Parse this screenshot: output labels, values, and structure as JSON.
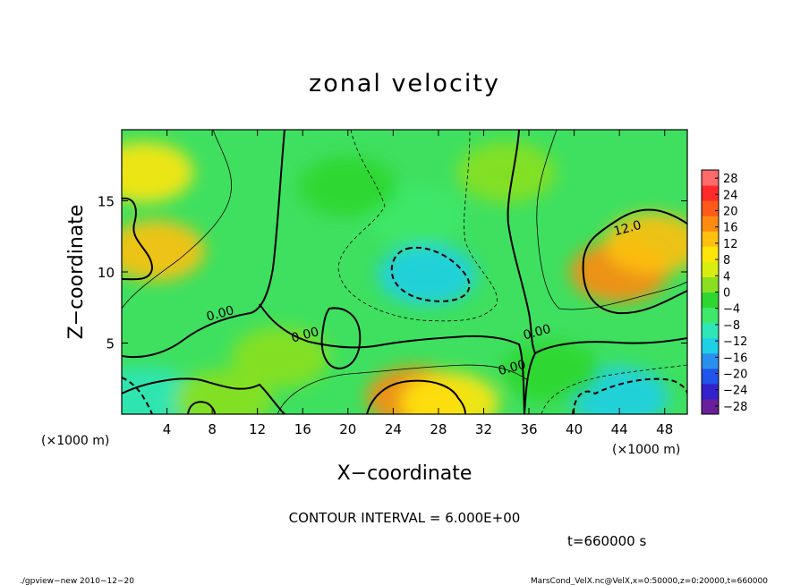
{
  "chart_data": {
    "type": "heatmap",
    "title": "zonal velocity",
    "xlabel": "X−coordinate",
    "ylabel": "Z−coordinate",
    "x_unit": "(×1000 m)",
    "y_unit": "(×1000 m)",
    "xlim": [
      0,
      50
    ],
    "ylim": [
      0,
      20
    ],
    "x_ticks": [
      4,
      8,
      12,
      16,
      20,
      24,
      28,
      32,
      36,
      40,
      44,
      48
    ],
    "y_ticks": [
      5,
      10,
      15
    ],
    "contour_interval_label": "CONTOUR INTERVAL = 6.000E+00",
    "contour_labels": [
      {
        "text": "0.00",
        "x": 8.8,
        "y": 6.8
      },
      {
        "text": "0.00",
        "x": 16.3,
        "y": 5.3
      },
      {
        "text": "0.00",
        "x": 34.6,
        "y": 3.0
      },
      {
        "text": "0.00",
        "x": 36.8,
        "y": 5.5
      },
      {
        "text": "12.0",
        "x": 44.8,
        "y": 12.8
      }
    ],
    "colorbar": {
      "labels": [
        "28",
        "24",
        "20",
        "16",
        "12",
        "8",
        "4",
        "0",
        "−4",
        "−8",
        "−12",
        "−16",
        "−20",
        "−24",
        "−28"
      ],
      "levels": [
        28,
        24,
        20,
        16,
        12,
        8,
        4,
        0,
        -4,
        -8,
        -12,
        -16,
        -20,
        -24,
        -28
      ],
      "range": [
        -30,
        30
      ]
    },
    "features": [
      {
        "x": 3,
        "y": 11.5,
        "v": 14
      },
      {
        "x": 2,
        "y": 17,
        "v": 10
      },
      {
        "x": 2,
        "y": 1.2,
        "v": -9
      },
      {
        "x": 9,
        "y": 1.0,
        "v": 3
      },
      {
        "x": 26,
        "y": 1.2,
        "v": 16
      },
      {
        "x": 29,
        "y": 0.8,
        "v": 10
      },
      {
        "x": 27,
        "y": 9.8,
        "v": -14
      },
      {
        "x": 26,
        "y": 14,
        "v": -6
      },
      {
        "x": 44,
        "y": 10.0,
        "v": 16
      },
      {
        "x": 47,
        "y": 12,
        "v": 12
      },
      {
        "x": 44,
        "y": 1.2,
        "v": -14
      },
      {
        "x": 20,
        "y": 16,
        "v": -1
      },
      {
        "x": 14,
        "y": 4,
        "v": 3
      },
      {
        "x": 34,
        "y": 17,
        "v": 1
      },
      {
        "x": 38,
        "y": 3,
        "v": -3
      }
    ]
  },
  "time_label": "t=660000 s",
  "footer": {
    "left": "./gpview−new   2010−12−20",
    "right": "MarsCond_VelX.nc@VelX,x=0:50000,z=0:20000,t=660000"
  },
  "colors": {
    "cmap": [
      "#6a1f9a",
      "#3322cc",
      "#1f55e8",
      "#2a90f0",
      "#1fcfe6",
      "#2fe6b8",
      "#3ee86a",
      "#2fd62f",
      "#8ae020",
      "#d8ee10",
      "#ffe60a",
      "#ffc010",
      "#ff8a10",
      "#ff5a1a",
      "#ff2a2a",
      "#ff6a6a"
    ]
  }
}
